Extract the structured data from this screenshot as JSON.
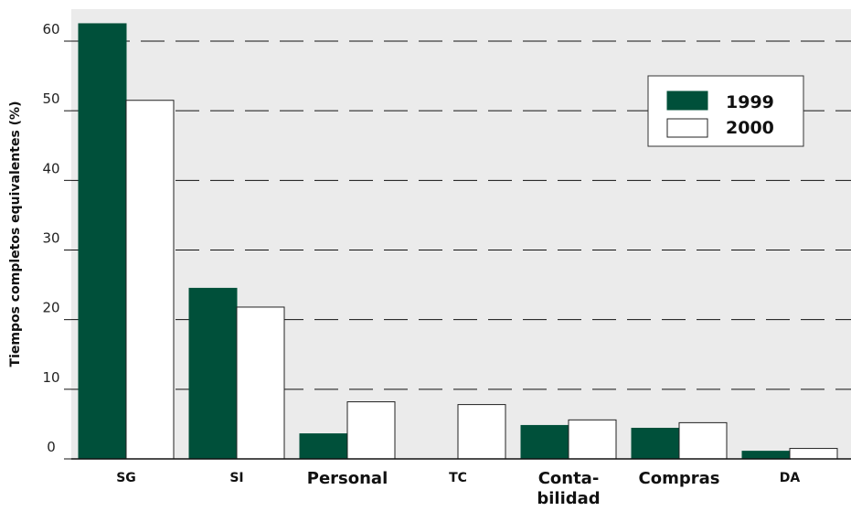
{
  "chart_data": {
    "type": "bar",
    "ylabel": "Tiempos completos equivalentes (%)",
    "xlabel": "",
    "ylim": [
      0,
      60
    ],
    "yticks": [
      "0",
      "10",
      "20",
      "30",
      "40",
      "50",
      "60"
    ],
    "grid": "horizontal dashed",
    "legend_position": "top-right",
    "categories": [
      {
        "label": "SG",
        "lines": [
          "SG"
        ],
        "size": "small"
      },
      {
        "label": "SI",
        "lines": [
          "SI"
        ],
        "size": "small"
      },
      {
        "label": "Personal",
        "lines": [
          "Personal"
        ],
        "size": "large"
      },
      {
        "label": "TC",
        "lines": [
          "TC"
        ],
        "size": "small"
      },
      {
        "label": "Conta-bilidad",
        "lines": [
          "Conta-",
          "bilidad"
        ],
        "size": "large"
      },
      {
        "label": "Compras",
        "lines": [
          "Compras"
        ],
        "size": "large"
      },
      {
        "label": "DA",
        "lines": [
          "DA"
        ],
        "size": "small"
      }
    ],
    "series": [
      {
        "name": "1999",
        "color": "#00503a",
        "values": [
          62.5,
          24.5,
          3.6,
          0,
          4.8,
          4.4,
          1.1
        ]
      },
      {
        "name": "2000",
        "color": "#ffffff",
        "values": [
          51.5,
          21.8,
          8.2,
          7.8,
          5.6,
          5.2,
          1.5
        ]
      }
    ]
  }
}
